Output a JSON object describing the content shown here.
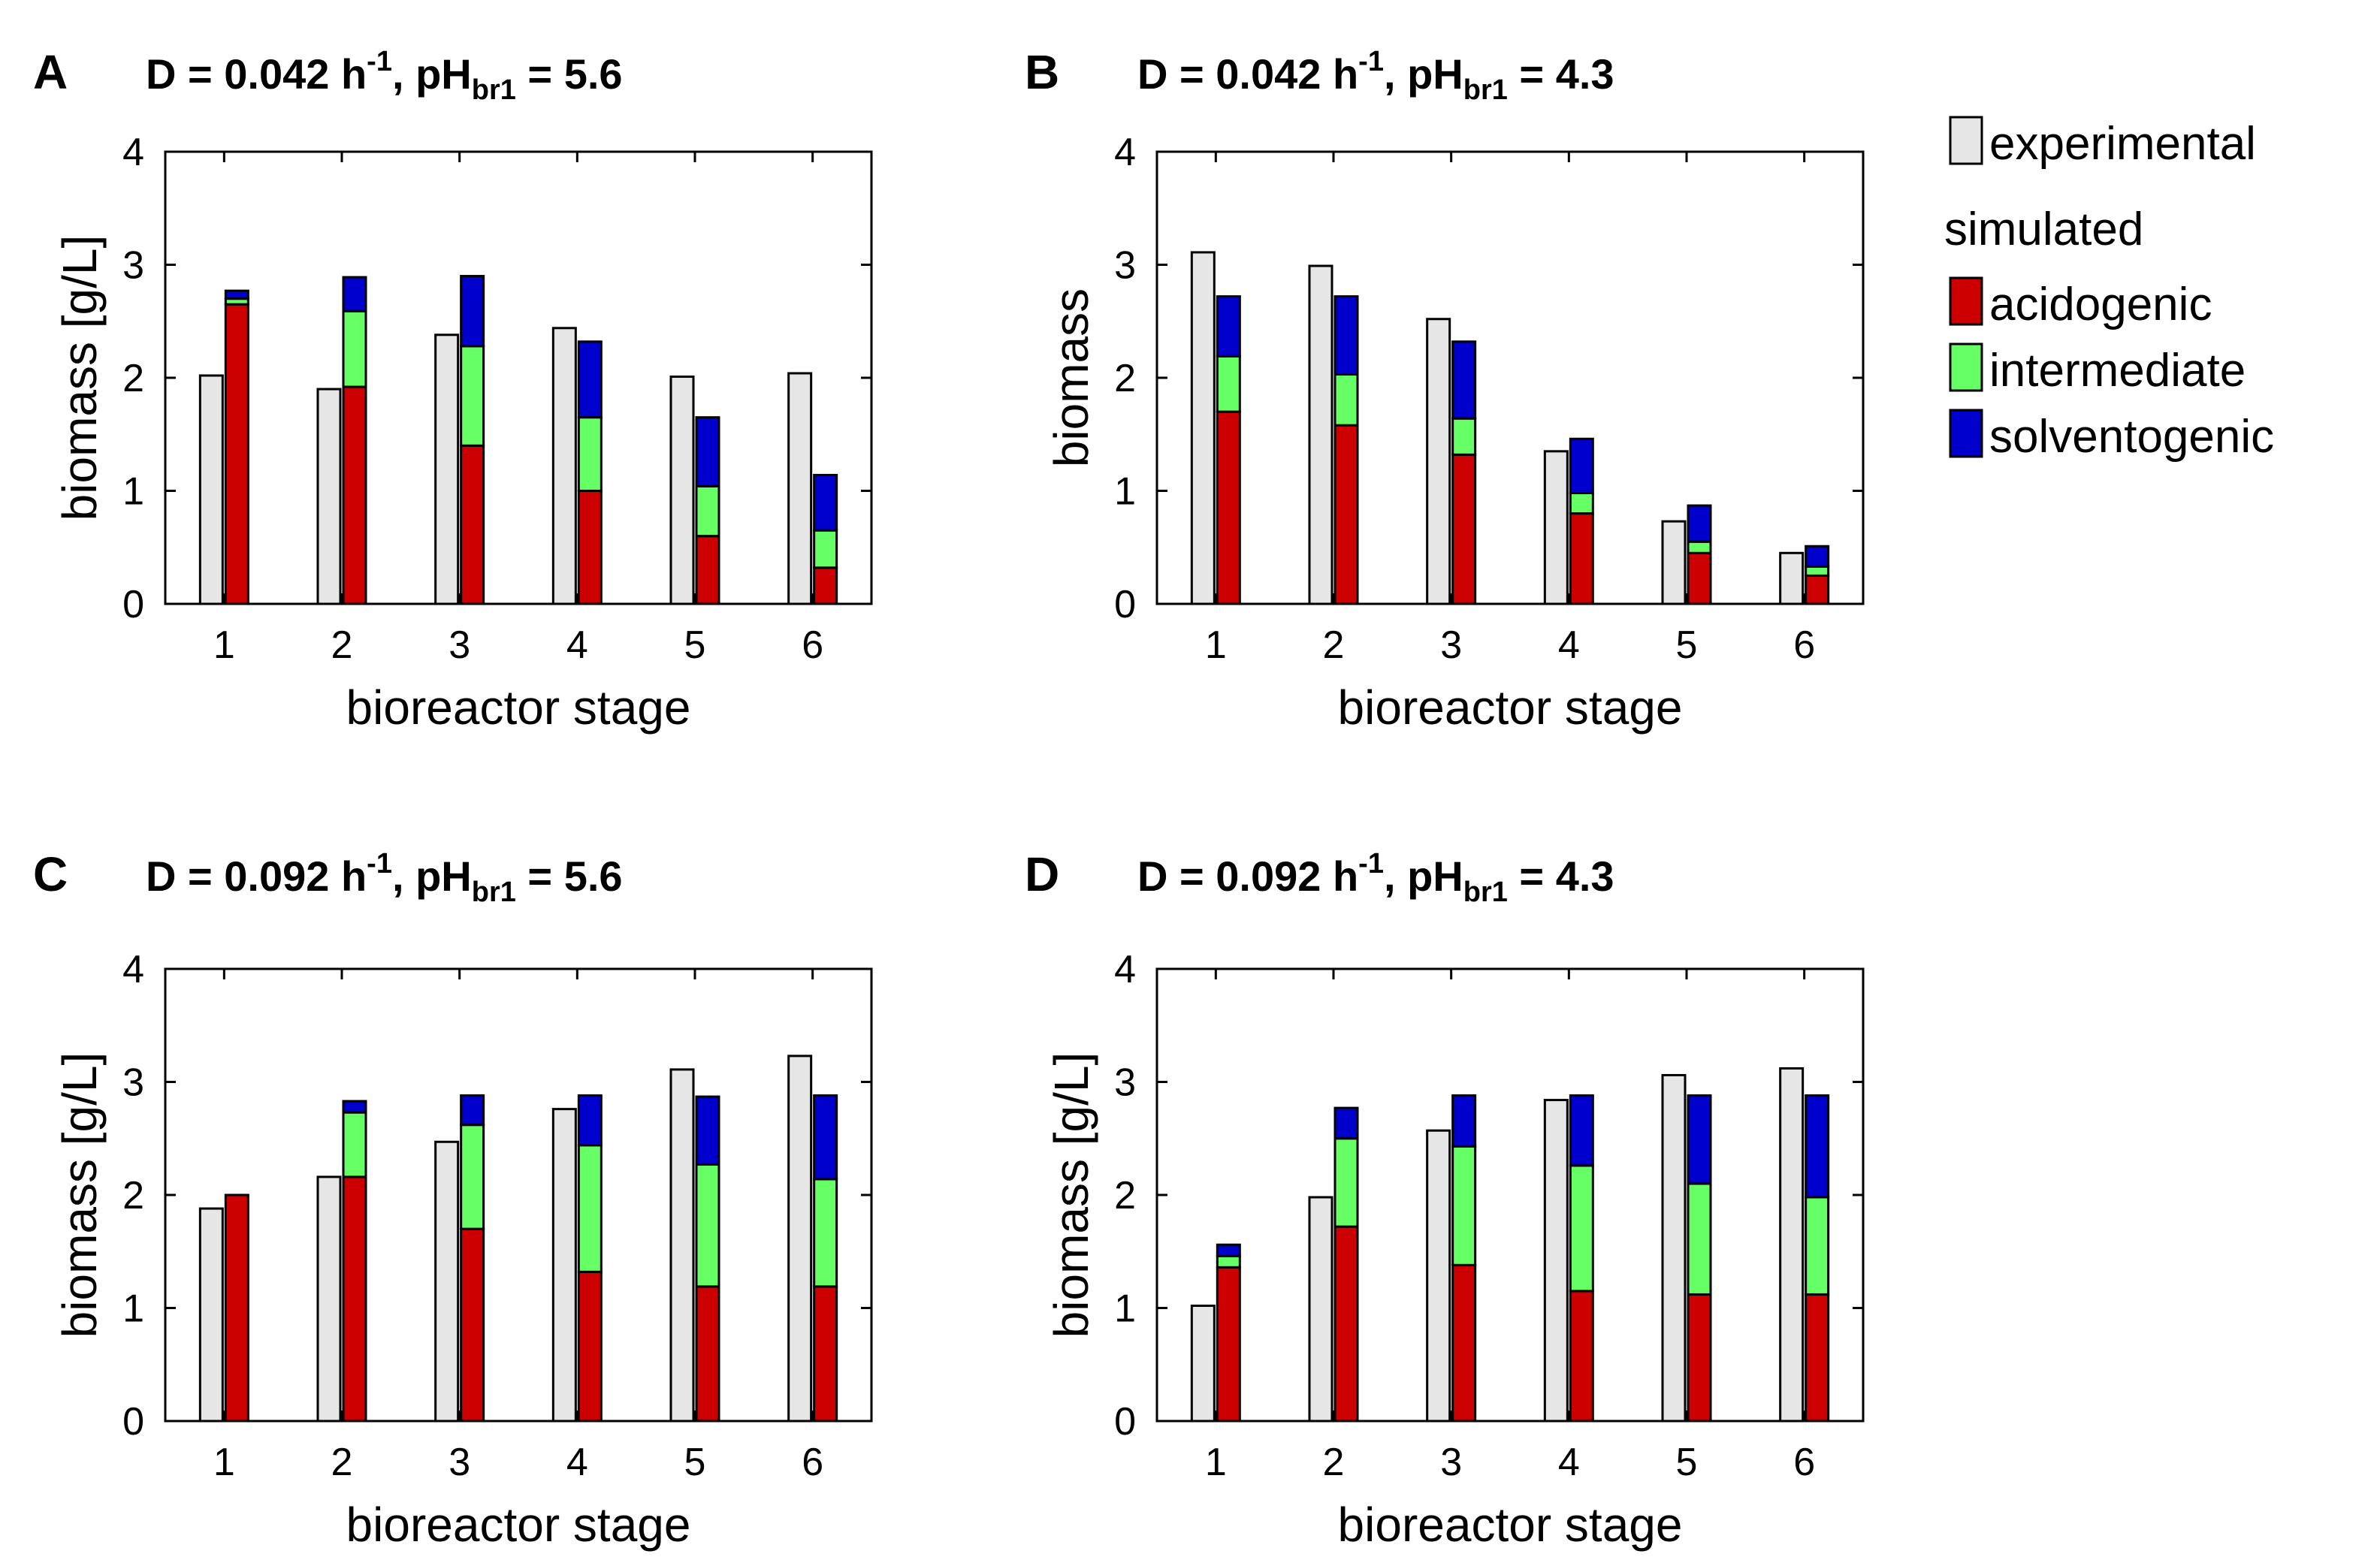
{
  "figure": {
    "legend": {
      "experimental": "experimental",
      "simulated_heading": "simulated",
      "acidogenic": "acidogenic",
      "intermediate": "intermediate",
      "solventogenic": "solventogenic"
    }
  },
  "colors": {
    "experimental": "#e6e6e6",
    "acidogenic": "#cc0000",
    "intermediate": "#66ff66",
    "solventogenic": "#0000cc",
    "outline": "#000000"
  },
  "chart_data": [
    {
      "type": "bar",
      "panel": "A",
      "title_prefix": "D = 0.042 h",
      "title_sup": "-1",
      "title_mid": ", pH",
      "title_sub": "br1",
      "title_suffix": " = 5.6",
      "xlabel": "bioreactor stage",
      "ylabel": "biomass [g/L]",
      "ylim": [
        0,
        4
      ],
      "yticks": [
        "0",
        "1",
        "2",
        "3",
        "4"
      ],
      "categories": [
        "1",
        "2",
        "3",
        "4",
        "5",
        "6"
      ],
      "series": [
        {
          "name": "experimental",
          "values": [
            2.02,
            1.9,
            2.38,
            2.44,
            2.01,
            2.04
          ]
        },
        {
          "name": "acidogenic",
          "values": [
            2.65,
            1.92,
            1.4,
            1.0,
            0.6,
            0.32
          ]
        },
        {
          "name": "intermediate",
          "values": [
            0.05,
            0.67,
            0.88,
            0.65,
            0.44,
            0.33
          ]
        },
        {
          "name": "solventogenic",
          "values": [
            0.07,
            0.3,
            0.62,
            0.67,
            0.61,
            0.49
          ]
        }
      ]
    },
    {
      "type": "bar",
      "panel": "B",
      "title_prefix": "D = 0.042 h",
      "title_sup": "-1",
      "title_mid": ", pH",
      "title_sub": "br1",
      "title_suffix": " = 4.3",
      "xlabel": "bioreactor stage",
      "ylabel": "biomass",
      "ylim": [
        0,
        4
      ],
      "yticks": [
        "0",
        "1",
        "2",
        "3",
        "4"
      ],
      "categories": [
        "1",
        "2",
        "3",
        "4",
        "5",
        "6"
      ],
      "series": [
        {
          "name": "experimental",
          "values": [
            3.11,
            2.99,
            2.52,
            1.35,
            0.73,
            0.45
          ]
        },
        {
          "name": "acidogenic",
          "values": [
            1.7,
            1.58,
            1.32,
            0.8,
            0.45,
            0.25
          ]
        },
        {
          "name": "intermediate",
          "values": [
            0.49,
            0.45,
            0.32,
            0.18,
            0.1,
            0.08
          ]
        },
        {
          "name": "solventogenic",
          "values": [
            0.53,
            0.69,
            0.68,
            0.48,
            0.32,
            0.18
          ]
        }
      ]
    },
    {
      "type": "bar",
      "panel": "C",
      "title_prefix": "D = 0.092 h",
      "title_sup": "-1",
      "title_mid": ", pH",
      "title_sub": "br1",
      "title_suffix": " = 5.6",
      "xlabel": "bioreactor stage",
      "ylabel": "biomass [g/L]",
      "ylim": [
        0,
        4
      ],
      "yticks": [
        "0",
        "1",
        "2",
        "3",
        "4"
      ],
      "categories": [
        "1",
        "2",
        "3",
        "4",
        "5",
        "6"
      ],
      "series": [
        {
          "name": "experimental",
          "values": [
            1.88,
            2.16,
            2.47,
            2.76,
            3.11,
            3.23
          ]
        },
        {
          "name": "acidogenic",
          "values": [
            2.0,
            2.16,
            1.7,
            1.32,
            1.19,
            1.19
          ]
        },
        {
          "name": "intermediate",
          "values": [
            0.0,
            0.57,
            0.92,
            1.12,
            1.08,
            0.95
          ]
        },
        {
          "name": "solventogenic",
          "values": [
            0.0,
            0.1,
            0.26,
            0.44,
            0.6,
            0.74
          ]
        }
      ]
    },
    {
      "type": "bar",
      "panel": "D",
      "title_prefix": "D = 0.092 h",
      "title_sup": "-1",
      "title_mid": ", pH",
      "title_sub": "br1",
      "title_suffix": " = 4.3",
      "xlabel": "bioreactor stage",
      "ylabel": "biomass [g/L]",
      "ylim": [
        0,
        4
      ],
      "yticks": [
        "0",
        "1",
        "2",
        "3",
        "4"
      ],
      "categories": [
        "1",
        "2",
        "3",
        "4",
        "5",
        "6"
      ],
      "series": [
        {
          "name": "experimental",
          "values": [
            1.02,
            1.98,
            2.57,
            2.84,
            3.06,
            3.12
          ]
        },
        {
          "name": "acidogenic",
          "values": [
            1.36,
            1.72,
            1.38,
            1.15,
            1.12,
            1.12
          ]
        },
        {
          "name": "intermediate",
          "values": [
            0.1,
            0.78,
            1.05,
            1.11,
            0.98,
            0.86
          ]
        },
        {
          "name": "solventogenic",
          "values": [
            0.1,
            0.27,
            0.45,
            0.62,
            0.78,
            0.9
          ]
        }
      ]
    }
  ]
}
